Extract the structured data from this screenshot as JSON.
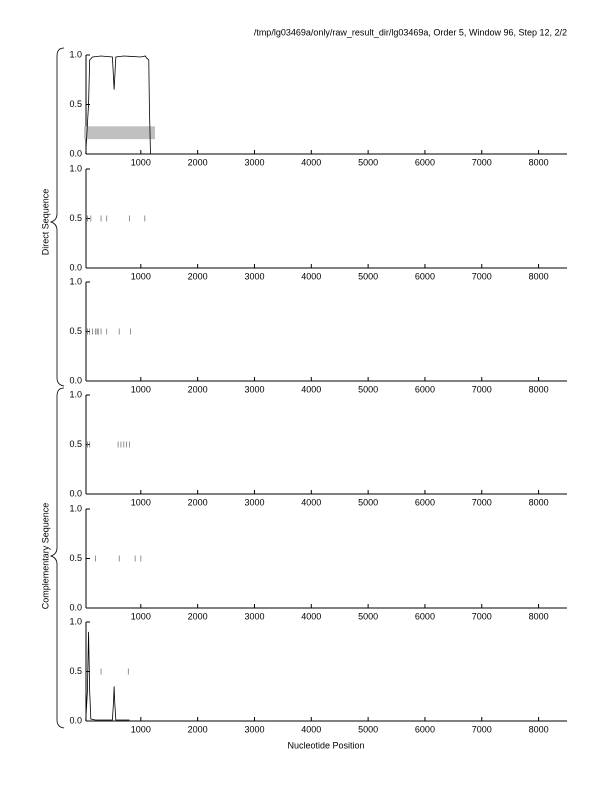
{
  "title": "/tmp/lg03469a/only/raw_result_dir/lg03469a, Order 5, Window 96, Step 12, 2/2",
  "x_label": "Nucleotide Position",
  "group_labels": [
    "Direct Sequence",
    "Complementary Sequence"
  ],
  "chart_data": [
    {
      "type": "line",
      "color": "#000000",
      "x": [
        30,
        80,
        100,
        150,
        300,
        500,
        530,
        560,
        700,
        1000,
        1080,
        1100,
        1140,
        1150,
        1170
      ],
      "values": [
        0.0,
        0.5,
        0.95,
        0.98,
        0.99,
        0.98,
        0.65,
        0.98,
        0.99,
        0.98,
        0.99,
        0.97,
        0.95,
        0.5,
        0.0
      ],
      "regions": [
        {
          "start": 0,
          "end": 1250,
          "ymin": 0.15,
          "ymax": 0.28
        }
      ],
      "xlim": [
        0,
        8500
      ],
      "ylim": [
        0,
        1
      ],
      "xticks": [
        1000,
        2000,
        3000,
        4000,
        5000,
        6000,
        7000,
        8000
      ],
      "yticks": [
        {
          "value": 0,
          "label": "0.0"
        },
        {
          "value": 0.5,
          "label": "0.5"
        },
        {
          "value": 1,
          "label": "1.0"
        }
      ]
    },
    {
      "type": "line",
      "color": "#000000",
      "marker_x": [
        60,
        120,
        300,
        400,
        800,
        1070
      ],
      "marker_y": 0.5,
      "xlim": [
        0,
        8500
      ],
      "ylim": [
        0,
        1
      ],
      "xticks": [
        1000,
        2000,
        3000,
        4000,
        5000,
        6000,
        7000,
        8000
      ],
      "yticks": [
        {
          "value": 0,
          "label": "0.0"
        },
        {
          "value": 0.5,
          "label": "0.5"
        },
        {
          "value": 1,
          "label": "1.0"
        }
      ]
    },
    {
      "type": "line",
      "color": "#000000",
      "marker_x": [
        60,
        100,
        150,
        200,
        230,
        250,
        300,
        400,
        620,
        820
      ],
      "marker_y": 0.5,
      "xlim": [
        0,
        8500
      ],
      "ylim": [
        0,
        1
      ],
      "xticks": [
        1000,
        2000,
        3000,
        4000,
        5000,
        6000,
        7000,
        8000
      ],
      "yticks": [
        {
          "value": 0,
          "label": "0.0"
        },
        {
          "value": 0.5,
          "label": "0.5"
        },
        {
          "value": 1,
          "label": "1.0"
        }
      ]
    },
    {
      "type": "line",
      "color": "#000000",
      "marker_x": [
        60,
        100,
        600,
        650,
        700,
        750,
        800
      ],
      "marker_y": 0.5,
      "xlim": [
        0,
        8500
      ],
      "ylim": [
        0,
        1
      ],
      "xticks": [
        1000,
        2000,
        3000,
        4000,
        5000,
        6000,
        7000,
        8000
      ],
      "yticks": [
        {
          "value": 0,
          "label": "0.0"
        },
        {
          "value": 0.5,
          "label": "0.5"
        },
        {
          "value": 1,
          "label": "1.0"
        }
      ]
    },
    {
      "type": "line",
      "color": "#000000",
      "marker_x": [
        200,
        620,
        900,
        1000
      ],
      "marker_y": 0.5,
      "xlim": [
        0,
        8500
      ],
      "ylim": [
        0,
        1
      ],
      "xticks": [
        1000,
        2000,
        3000,
        4000,
        5000,
        6000,
        7000,
        8000
      ],
      "yticks": [
        {
          "value": 0,
          "label": "0.0"
        },
        {
          "value": 0.5,
          "label": "0.5"
        },
        {
          "value": 1,
          "label": "1.0"
        }
      ]
    },
    {
      "type": "line",
      "color": "#000000",
      "x": [
        30,
        60,
        80,
        100,
        120,
        200,
        500,
        520,
        530,
        540,
        560,
        800
      ],
      "values": [
        0.0,
        0.3,
        0.9,
        0.3,
        0.02,
        0.01,
        0.01,
        0.2,
        0.35,
        0.2,
        0.01,
        0.01
      ],
      "marker_x": [
        300,
        780
      ],
      "marker_y": 0.5,
      "xlim": [
        0,
        8500
      ],
      "ylim": [
        0,
        1
      ],
      "xticks": [
        1000,
        2000,
        3000,
        4000,
        5000,
        6000,
        7000,
        8000
      ],
      "yticks": [
        {
          "value": 0,
          "label": "0.0"
        },
        {
          "value": 0.5,
          "label": "0.5"
        },
        {
          "value": 1,
          "label": "1.0"
        }
      ]
    }
  ]
}
